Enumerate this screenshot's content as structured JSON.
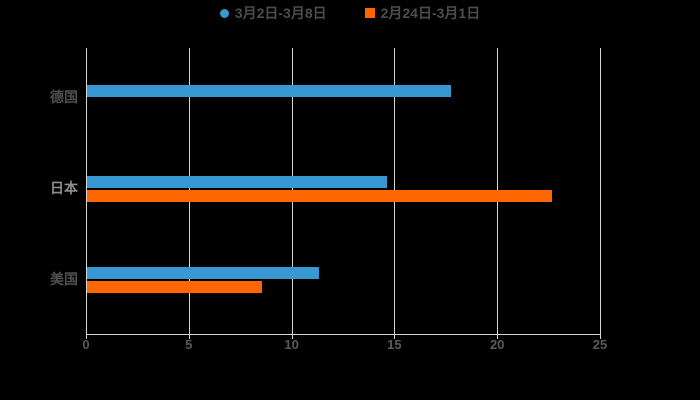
{
  "page": {
    "background_color": "#000000"
  },
  "legend": {
    "items": [
      {
        "label": "3月2日-3月8日",
        "marker": "circle",
        "color": "#3899D2"
      },
      {
        "label": "2月24日-3月1日",
        "marker": "square",
        "color": "#FF6600"
      }
    ]
  },
  "chart_data": {
    "type": "bar",
    "orientation": "horizontal",
    "title": "",
    "xlabel": "",
    "ylabel": "",
    "categories": [
      "德国",
      "日本",
      "美国"
    ],
    "series": [
      {
        "name": "3月2日-3月8日",
        "color": "#3899D2",
        "values": [
          17.7,
          14.6,
          11.3
        ]
      },
      {
        "name": "2月24日-3月1日",
        "color": "#FF6600",
        "values": [
          0,
          22.6,
          8.5
        ]
      }
    ],
    "xlim": [
      0,
      25
    ],
    "xticks": [
      0,
      5,
      10,
      15,
      20,
      25
    ],
    "grid": true,
    "legend_position": "top center",
    "colors": {
      "background": "#000000",
      "gridline": "#D6D6D6",
      "axis_line": "#D6D6D6",
      "tick_label": "#595959",
      "legend_label": "#4D4D4D",
      "category_labels": [
        "#4F4F4F",
        "#8E8E8E",
        "#4F4F4F"
      ]
    }
  }
}
